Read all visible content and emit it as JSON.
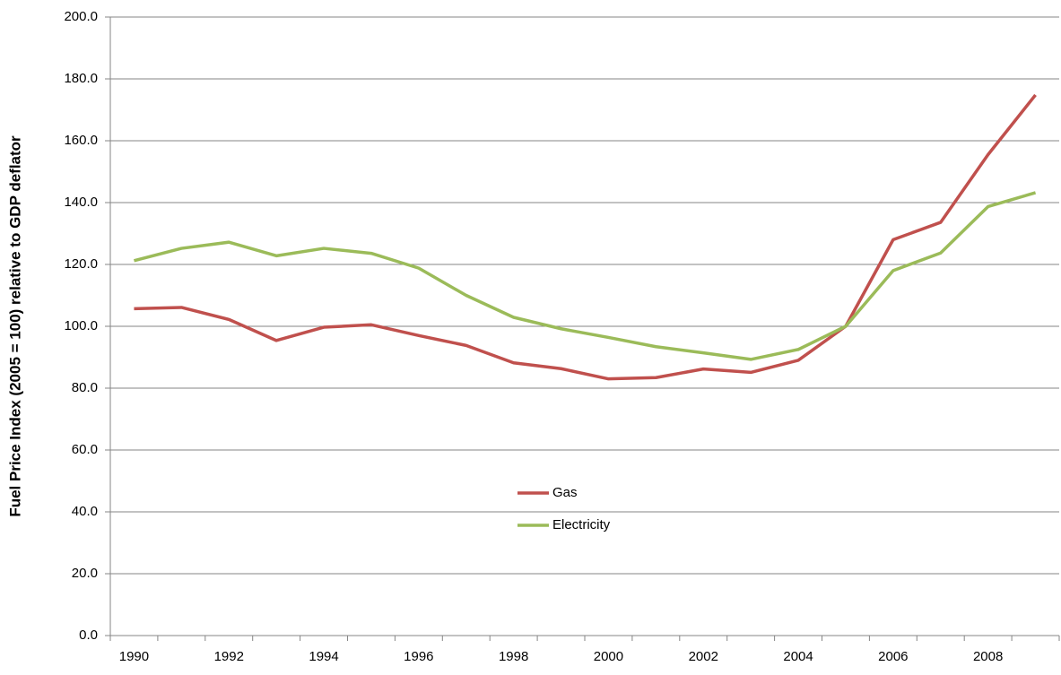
{
  "chart_data": {
    "type": "line",
    "y_label": "Fuel Price Index (2005 = 100) relative to GDP deflator",
    "categories": [
      "1990",
      null,
      "1992",
      null,
      "1994",
      null,
      "1996",
      null,
      "1998",
      null,
      "2000",
      null,
      "2002",
      null,
      "2004",
      null,
      "2006",
      null,
      "2008",
      null
    ],
    "series": [
      {
        "name": "Gas",
        "color": "#c0504d",
        "values": [
          105.7,
          106.1,
          102.2,
          95.4,
          99.7,
          100.5,
          97.0,
          93.8,
          88.2,
          86.3,
          83.0,
          83.4,
          86.2,
          85.1,
          89.0,
          100.0,
          128.0,
          133.6,
          155.5,
          174.8
        ]
      },
      {
        "name": "Electricity",
        "color": "#9bbb59",
        "values": [
          121.2,
          125.2,
          127.2,
          122.8,
          125.2,
          123.6,
          118.8,
          110.0,
          102.9,
          99.2,
          96.4,
          93.4,
          91.4,
          89.3,
          92.5,
          100.0,
          118.0,
          123.7,
          138.7,
          143.2
        ]
      }
    ],
    "ylim": [
      0,
      200
    ],
    "yticks": [
      {
        "value": 0,
        "label": "0.0"
      },
      {
        "value": 20,
        "label": "20.0"
      },
      {
        "value": 40,
        "label": "40.0"
      },
      {
        "value": 60,
        "label": "60.0"
      },
      {
        "value": 80,
        "label": "80.0"
      },
      {
        "value": 100,
        "label": "100.0"
      },
      {
        "value": 120,
        "label": "120.0"
      },
      {
        "value": 140,
        "label": "140.0"
      },
      {
        "value": 160,
        "label": "160.0"
      },
      {
        "value": 180,
        "label": "180.0"
      },
      {
        "value": 200,
        "label": "200.0"
      }
    ],
    "grid": true
  }
}
